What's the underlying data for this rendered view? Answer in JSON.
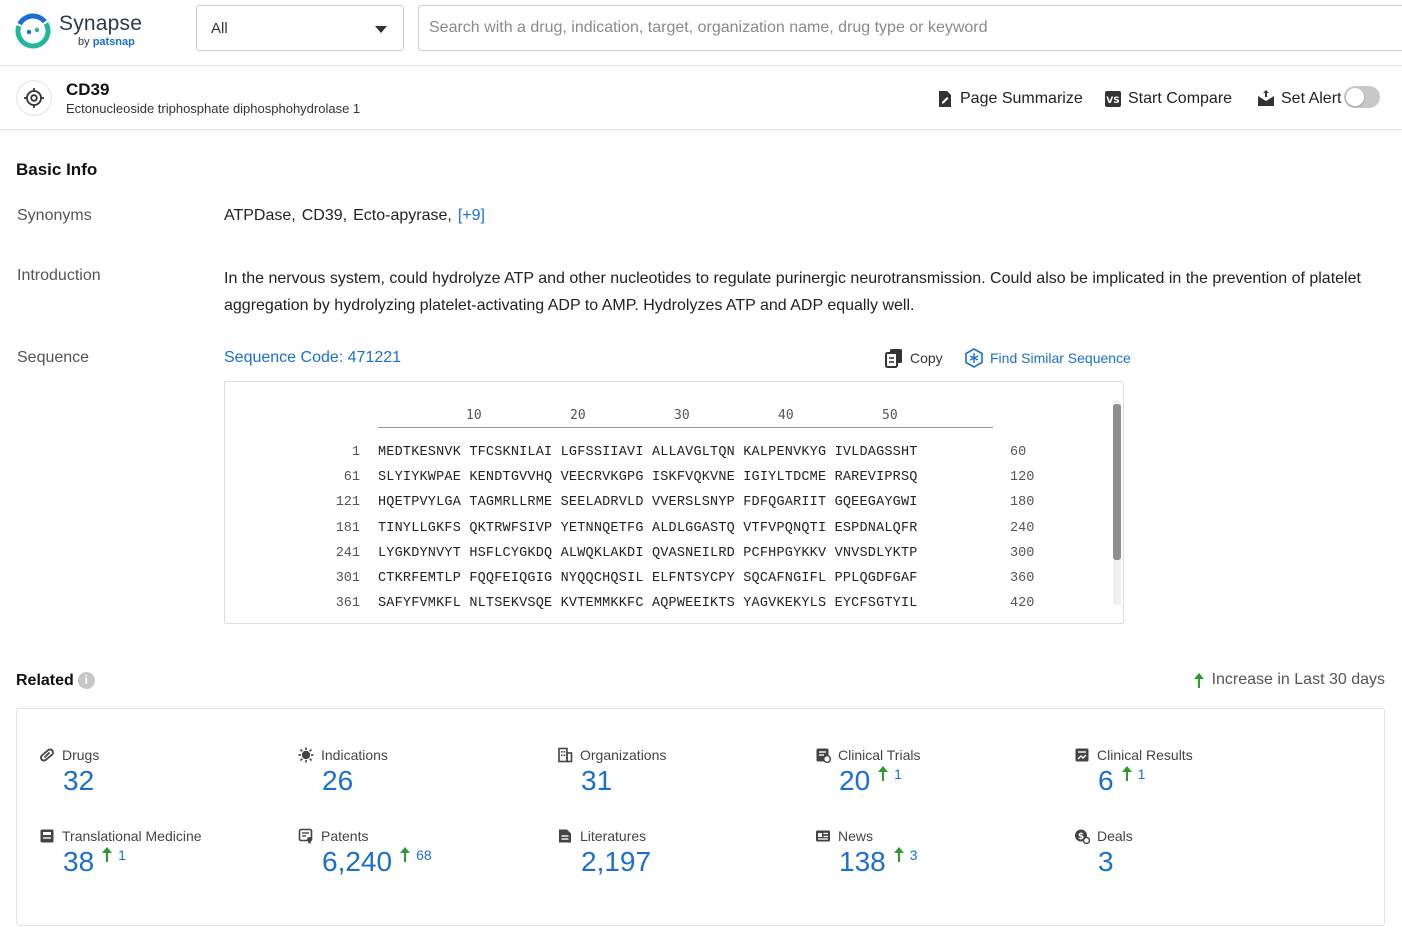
{
  "topbar": {
    "logo_name": "Synapse",
    "logo_by": "by",
    "logo_brand": "patsnap",
    "scope_value": "All",
    "search_placeholder": "Search with a drug, indication, target, organization name, drug type or keyword"
  },
  "target": {
    "name": "CD39",
    "full_name": "Ectonucleoside triphosphate diphosphohydrolase 1",
    "actions": {
      "summarize": "Page Summarize",
      "compare": "Start Compare",
      "alert": "Set Alert"
    },
    "alert_enabled": false
  },
  "basic_info": {
    "title": "Basic Info",
    "synonyms_label": "Synonyms",
    "synonyms": [
      "ATPDase,",
      "CD39,",
      "Ecto-apyrase,"
    ],
    "synonyms_more": "[+9]",
    "introduction_label": "Introduction",
    "introduction": "In the nervous system, could hydrolyze ATP and other nucleotides to regulate purinergic neurotransmission. Could also be implicated in the prevention of platelet aggregation by hydrolyzing platelet-activating ADP to AMP. Hydrolyzes ATP and ADP equally well.",
    "sequence_label": "Sequence",
    "sequence_code": "Sequence Code: 471221",
    "copy_label": "Copy",
    "find_similar_label": "Find Similar Sequence",
    "ruler": [
      "10",
      "20",
      "30",
      "40",
      "50"
    ],
    "rows": [
      {
        "start": "1",
        "seq": "MEDTKESNVK TFCSKNILAI LGFSSIIAVI ALLAVGLTQN KALPENVKYG IVLDAGSSHT",
        "end": "60"
      },
      {
        "start": "61",
        "seq": "SLYIYKWPAE KENDTGVVHQ VEECRVKGPG ISKFVQKVNE IGIYLTDCME RAREVIPRSQ",
        "end": "120"
      },
      {
        "start": "121",
        "seq": "HQETPVYLGA TAGMRLLRME SEELADRVLD VVERSLSNYP FDFQGARIIT GQEEGAYGWI",
        "end": "180"
      },
      {
        "start": "181",
        "seq": "TINYLLGKFS QKTRWFSIVP YETNNQETFG ALDLGGASTQ VTFVPQNQTI ESPDNALQFR",
        "end": "240"
      },
      {
        "start": "241",
        "seq": "LYGKDYNVYT HSFLCYGKDQ ALWQKLAKDI QVASNEILRD PCFHPGYKKV VNVSDLYKTP",
        "end": "300"
      },
      {
        "start": "301",
        "seq": "CTKRFEMTLP FQQFEIQGIG NYQQCHQSIL ELFNTSYCPY SQCAFNGIFL PPLQGDFGAF",
        "end": "360"
      },
      {
        "start": "361",
        "seq": "SAFYFVMKFL NLTSEKVSQE KVTEMMKKFC AQPWEEIKTS YAGVKEKYLS EYCFSGTYIL",
        "end": "420"
      }
    ]
  },
  "related": {
    "title": "Related",
    "legend": "Increase in Last 30 days",
    "items": [
      {
        "label": "Drugs",
        "value": "32",
        "inc": "",
        "icon": "pill-icon"
      },
      {
        "label": "Indications",
        "value": "26",
        "inc": "",
        "icon": "virus-icon"
      },
      {
        "label": "Organizations",
        "value": "31",
        "inc": "",
        "icon": "building-icon"
      },
      {
        "label": "Clinical Trials",
        "value": "20",
        "inc": "1",
        "icon": "clipboard-icon"
      },
      {
        "label": "Clinical Results",
        "value": "6",
        "inc": "1",
        "icon": "chart-doc-icon"
      },
      {
        "label": "Translational Medicine",
        "value": "38",
        "inc": "1",
        "icon": "doc-icon"
      },
      {
        "label": "Patents",
        "value": "6,240",
        "inc": "68",
        "icon": "patent-icon"
      },
      {
        "label": "Literatures",
        "value": "2,197",
        "inc": "",
        "icon": "literature-icon"
      },
      {
        "label": "News",
        "value": "138",
        "inc": "3",
        "icon": "news-icon"
      },
      {
        "label": "Deals",
        "value": "3",
        "inc": "",
        "icon": "deal-icon"
      }
    ]
  },
  "colors": {
    "accent": "#1a6fd1",
    "increase": "#2e9b2e"
  }
}
